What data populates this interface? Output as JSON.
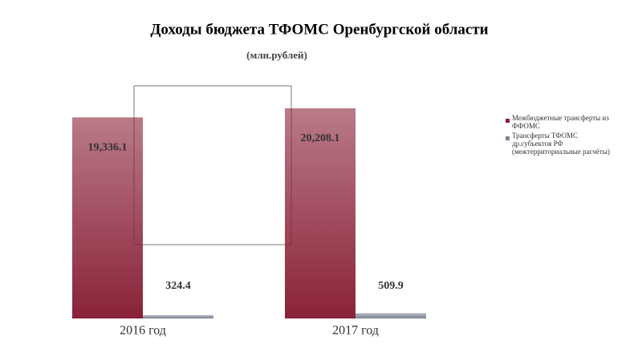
{
  "chart_data": {
    "type": "bar",
    "title": "Доходы бюджета ТФОМС Оренбургской области",
    "subtitle": "(млн.рублей)",
    "categories": [
      "2016 год",
      "2017 год"
    ],
    "series": [
      {
        "name": "Межбюджетные трансферты из ФФОМС",
        "color": "#8a2238",
        "values": [
          19336.1,
          20208.1
        ],
        "value_labels": [
          "19,336.1",
          "20,208.1"
        ]
      },
      {
        "name": "Трансферты ТФОМС др.субъектов РФ (межтерриториальные расчёты)",
        "color": "#7d8494",
        "values": [
          324.4,
          509.9
        ]
      }
    ]
  }
}
